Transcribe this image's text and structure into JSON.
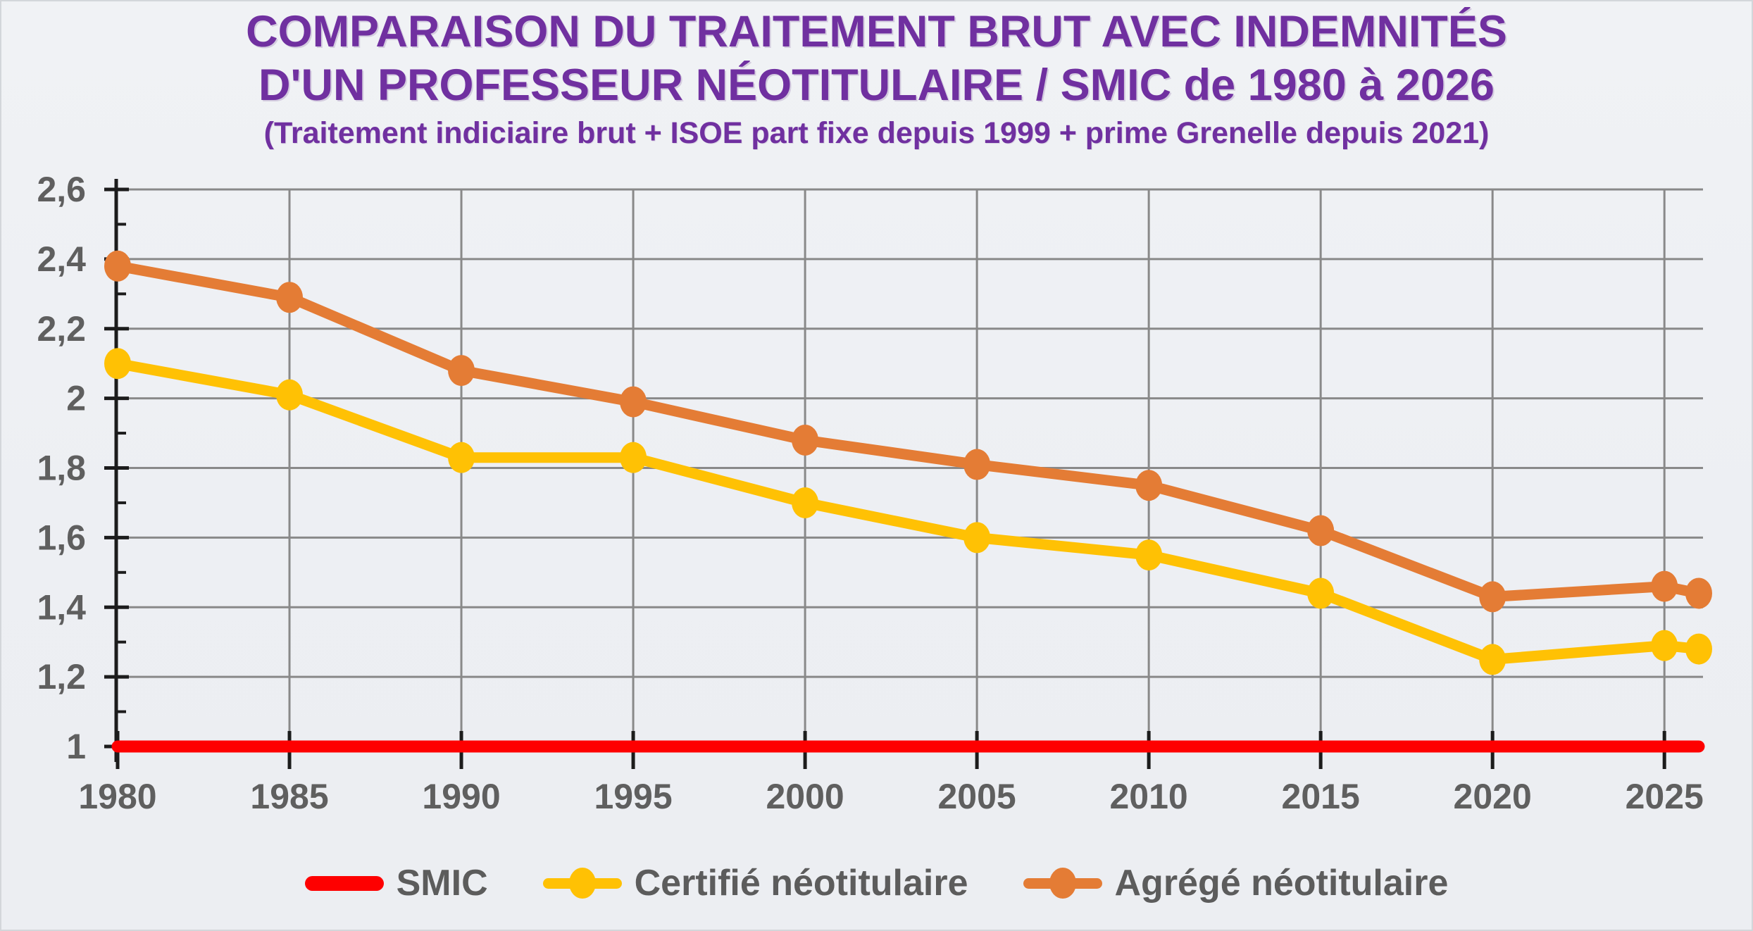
{
  "title": {
    "line1": "COMPARAISON DU TRAITEMENT BRUT AVEC INDEMNITÉS",
    "line2": "D'UN PROFESSEUR NÉOTITULAIRE / SMIC de 1980 à 2026",
    "subtitle": "(Traitement indiciaire brut + ISOE part fixe depuis 1999 + prime Grenelle depuis 2021)"
  },
  "chart_data": {
    "type": "line",
    "x": [
      1980,
      1985,
      1990,
      1995,
      2000,
      2005,
      2010,
      2015,
      2020,
      2025,
      2026
    ],
    "x_ticks": [
      1980,
      1985,
      1990,
      1995,
      2000,
      2005,
      2010,
      2015,
      2020,
      2025
    ],
    "x_tick_labels": [
      "1980",
      "1985",
      "1990",
      "1995",
      "2000",
      "2005",
      "2010",
      "2015",
      "2020",
      "2025"
    ],
    "y_ticks": [
      1,
      1.2,
      1.4,
      1.6,
      1.8,
      2,
      2.2,
      2.4,
      2.6
    ],
    "y_tick_labels": [
      "1",
      "1,2",
      "1,4",
      "1,6",
      "1,8",
      "2",
      "2,2",
      "2,4",
      "2,6"
    ],
    "y_minor_tick_step": 0.1,
    "xlim": [
      1980,
      2026
    ],
    "ylim": [
      1.0,
      2.6
    ],
    "grid": true,
    "legend_position": "bottom",
    "series": [
      {
        "name": "SMIC",
        "color": "#fe0000",
        "marker": "none",
        "values": [
          1,
          1,
          1,
          1,
          1,
          1,
          1,
          1,
          1,
          1,
          1
        ]
      },
      {
        "name": "Certifié néotitulaire",
        "color": "#ffc104",
        "marker": "circle",
        "values": [
          2.1,
          2.01,
          1.83,
          1.83,
          1.7,
          1.6,
          1.55,
          1.44,
          1.25,
          1.29,
          1.28
        ]
      },
      {
        "name": "Agrégé néotitulaire",
        "color": "#e47c35",
        "marker": "circle",
        "values": [
          2.38,
          2.29,
          2.08,
          1.99,
          1.88,
          1.81,
          1.75,
          1.62,
          1.43,
          1.46,
          1.44
        ]
      }
    ]
  },
  "colors": {
    "title": "#7030a0",
    "axis_labels": "#5f5f5f",
    "gridline": "#898989",
    "axis_line": "#1c1c1c",
    "background": "#edeff3",
    "legend_text": "#5c5c5c"
  }
}
